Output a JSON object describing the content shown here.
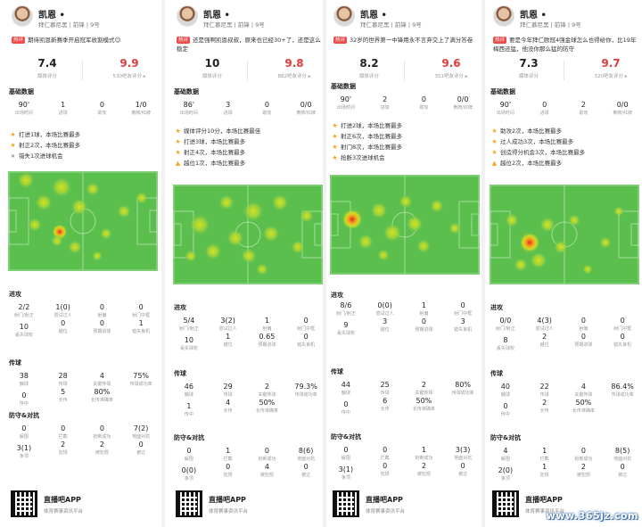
{
  "panels": [
    {
      "name": "凯恩 •",
      "team": "拜仁慕尼黑 | 前锋 | 9号",
      "quote_tag": "热评",
      "quote": "期待凯恩新赛季开启冠军收割模式😉",
      "media_score": "7.4",
      "media_label": "媒体评分",
      "fan_score": "9.9",
      "fan_label": "530吧友评分 ▸",
      "sec_basic": "基础数据",
      "basic": [
        [
          "90'",
          "出场时间"
        ],
        [
          "1",
          "进球"
        ],
        [
          "0",
          "助攻"
        ],
        [
          "1/0",
          "黄牌/红牌"
        ]
      ],
      "highlights": [
        [
          "★",
          "打进1球，本场比赛最多"
        ],
        [
          "★",
          "射正2次，本场比赛最多"
        ],
        [
          "✕",
          "错失1次进球机会"
        ]
      ],
      "sec_attack": "进攻",
      "attack": [
        [
          "2/2",
          "射门/射正"
        ],
        [
          "1(0)",
          "尝试过人"
        ],
        [
          "0",
          "射偏"
        ],
        [
          "0",
          "射门中框"
        ],
        [
          "10",
          "丢失球权"
        ],
        [
          "0",
          "越位"
        ],
        [
          "0",
          "预期进球"
        ],
        [
          "1",
          "错失良机"
        ]
      ],
      "sec_pass": "传球",
      "pass": [
        [
          "38",
          "触球"
        ],
        [
          "28",
          "传球"
        ],
        [
          "4",
          "关键传球"
        ],
        [
          "75%",
          "传球成功率"
        ],
        [
          "0",
          "传中"
        ],
        [
          "5",
          "长传"
        ],
        [
          "80%",
          "长传准确率"
        ],
        [
          "",
          ""
        ]
      ],
      "sec_def": "防守&对抗",
      "def": [
        [
          "0",
          "解围"
        ],
        [
          "0",
          "拦截"
        ],
        [
          "0",
          "抢断成功"
        ],
        [
          "7(2)",
          "地面对抗"
        ],
        [
          "3(1)",
          "争顶"
        ],
        [
          "2",
          "犯规"
        ],
        [
          "2",
          "被犯规"
        ],
        [
          "0",
          "被过"
        ]
      ],
      "app": "直播吧APP",
      "app_sub": "体育赛事资讯平台"
    },
    {
      "name": "凯恩 •",
      "team": "拜仁慕尼黑 | 前锋 | 9号",
      "quote_tag": "热评",
      "quote": "还是强啊凯恩叔叔，原来也已经30+了，还是这么稳定",
      "media_score": "10",
      "media_label": "媒体评分",
      "fan_score": "9.8",
      "fan_label": "882吧友评分 ▸",
      "sec_basic": "基础数据",
      "basic": [
        [
          "86'",
          "出场时间"
        ],
        [
          "3",
          "进球"
        ],
        [
          "0",
          "助攻"
        ],
        [
          "0/0",
          "黄牌/红牌"
        ]
      ],
      "highlights": [
        [
          "★",
          "媒体评分10分，本场比赛最佳"
        ],
        [
          "★",
          "打进3球，本场比赛最多"
        ],
        [
          "★",
          "射正4次，本场比赛最多"
        ],
        [
          "▲",
          "越位1次，本场比赛最多"
        ]
      ],
      "sec_attack": "进攻",
      "attack": [
        [
          "5/4",
          "射门/射正"
        ],
        [
          "3(2)",
          "尝试过人"
        ],
        [
          "1",
          "射偏"
        ],
        [
          "0",
          "射门中框"
        ],
        [
          "10",
          "丢失球权"
        ],
        [
          "1",
          "越位"
        ],
        [
          "0.65",
          "预期进球"
        ],
        [
          "0",
          "错失良机"
        ]
      ],
      "sec_pass": "传球",
      "pass": [
        [
          "46",
          "触球"
        ],
        [
          "29",
          "传球"
        ],
        [
          "2",
          "关键传球"
        ],
        [
          "79.3%",
          "传球成功率"
        ],
        [
          "1",
          "传中"
        ],
        [
          "4",
          "长传"
        ],
        [
          "50%",
          "长传准确率"
        ],
        [
          "",
          ""
        ]
      ],
      "sec_def": "防守&对抗",
      "def": [
        [
          "0",
          "解围"
        ],
        [
          "1",
          "拦截"
        ],
        [
          "0",
          "抢断成功"
        ],
        [
          "8(6)",
          "地面对抗"
        ],
        [
          "0(0)",
          "争顶"
        ],
        [
          "0",
          "犯规"
        ],
        [
          "4",
          "被犯规"
        ],
        [
          "0",
          "被过"
        ]
      ],
      "app": "直播吧APP",
      "app_sub": "体育赛事资讯平台"
    },
    {
      "name": "凯恩 •",
      "team": "拜仁慕尼黑 | 前锋 | 9号",
      "quote_tag": "热评",
      "quote": "32岁的世界第一中锋用永不言弃交上了满分答卷",
      "media_score": "8.2",
      "media_label": "媒体评分",
      "fan_score": "9.6",
      "fan_label": "351吧友评分 ▸",
      "sec_basic": "基础数据",
      "basic": [
        [
          "90'",
          "出场时间"
        ],
        [
          "2",
          "进球"
        ],
        [
          "0",
          "助攻"
        ],
        [
          "0/0",
          "黄牌/红牌"
        ]
      ],
      "highlights": [
        [
          "★",
          "打进2球，本场比赛最多"
        ],
        [
          "★",
          "射正6次，本场比赛最多"
        ],
        [
          "★",
          "射门8次，本场比赛最多"
        ],
        [
          "★",
          "抢断3次进球机会"
        ]
      ],
      "sec_attack": "进攻",
      "attack": [
        [
          "8/6",
          "射门/射正"
        ],
        [
          "0(0)",
          "尝试过人"
        ],
        [
          "1",
          "射偏"
        ],
        [
          "0",
          "射门中框"
        ],
        [
          "9",
          "丢失球权"
        ],
        [
          "3",
          "越位"
        ],
        [
          "0",
          "预期进球"
        ],
        [
          "3",
          "错失良机"
        ]
      ],
      "sec_pass": "传球",
      "pass": [
        [
          "44",
          "触球"
        ],
        [
          "25",
          "传球"
        ],
        [
          "2",
          "关键传球"
        ],
        [
          "80%",
          "传球成功率"
        ],
        [
          "0",
          "传中"
        ],
        [
          "6",
          "长传"
        ],
        [
          "50%",
          "长传准确率"
        ],
        [
          "",
          ""
        ]
      ],
      "sec_def": "防守&对抗",
      "def": [
        [
          "0",
          "解围"
        ],
        [
          "0",
          "拦截"
        ],
        [
          "1",
          "抢断成功"
        ],
        [
          "3(3)",
          "地面对抗"
        ],
        [
          "3(1)",
          "争顶"
        ],
        [
          "0",
          "犯规"
        ],
        [
          "2",
          "被犯规"
        ],
        [
          "0",
          "被过"
        ]
      ],
      "app": "直播吧APP",
      "app_sub": "体育赛事资讯平台"
    },
    {
      "name": "凯恩 •",
      "team": "拜仁慕尼黑 | 前锋 | 9号",
      "quote_tag": "热评",
      "quote": "要是今年拜仁欧冠4强金球怎么也得给你，比19年梅西还猛，他没你那么猛的防守",
      "media_score": "7.3",
      "media_label": "媒体评分",
      "fan_score": "9.7",
      "fan_label": "320吧友评分 ▸",
      "sec_basic": "基础数据",
      "basic": [
        [
          "90'",
          "出场时间"
        ],
        [
          "0",
          "进球"
        ],
        [
          "2",
          "助攻"
        ],
        [
          "0/0",
          "黄牌/红牌"
        ]
      ],
      "highlights": [
        [
          "★",
          "助攻2次，本场比赛最多"
        ],
        [
          "★",
          "过人成功3次，本场比赛最多"
        ],
        [
          "★",
          "创造得分机会3次，本场比赛最多"
        ],
        [
          "▲",
          "越位2次，本场比赛最多"
        ]
      ],
      "sec_attack": "进攻",
      "attack": [
        [
          "0/0",
          "射门/射正"
        ],
        [
          "4(3)",
          "尝试过人"
        ],
        [
          "0",
          "射偏"
        ],
        [
          "0",
          "射门中框"
        ],
        [
          "8",
          "丢失球权"
        ],
        [
          "2",
          "越位"
        ],
        [
          "0",
          "预期进球"
        ],
        [
          "0",
          "错失良机"
        ]
      ],
      "sec_pass": "传球",
      "pass": [
        [
          "40",
          "触球"
        ],
        [
          "22",
          "传球"
        ],
        [
          "4",
          "关键传球"
        ],
        [
          "86.4%",
          "传球成功率"
        ],
        [
          "0",
          "传中"
        ],
        [
          "2",
          "长传"
        ],
        [
          "50%",
          "长传准确率"
        ],
        [
          "",
          ""
        ]
      ],
      "sec_def": "防守&对抗",
      "def": [
        [
          "4",
          "解围"
        ],
        [
          "1",
          "拦截"
        ],
        [
          "0",
          "抢断成功"
        ],
        [
          "8(5)",
          "地面对抗"
        ],
        [
          "2(0)",
          "争顶"
        ],
        [
          "1",
          "犯规"
        ],
        [
          "2",
          "被犯规"
        ],
        [
          "0",
          "被过"
        ]
      ],
      "app": "直播吧APP",
      "app_sub": "体育赛事资讯平台"
    }
  ],
  "watermark": "www.365jz.com",
  "colors": {
    "pitch": "#5bbf4e",
    "hot": "#e4282a",
    "warm": "#f3e21b",
    "fan_score": "#e23b3b",
    "tag": "#f04a4a"
  }
}
